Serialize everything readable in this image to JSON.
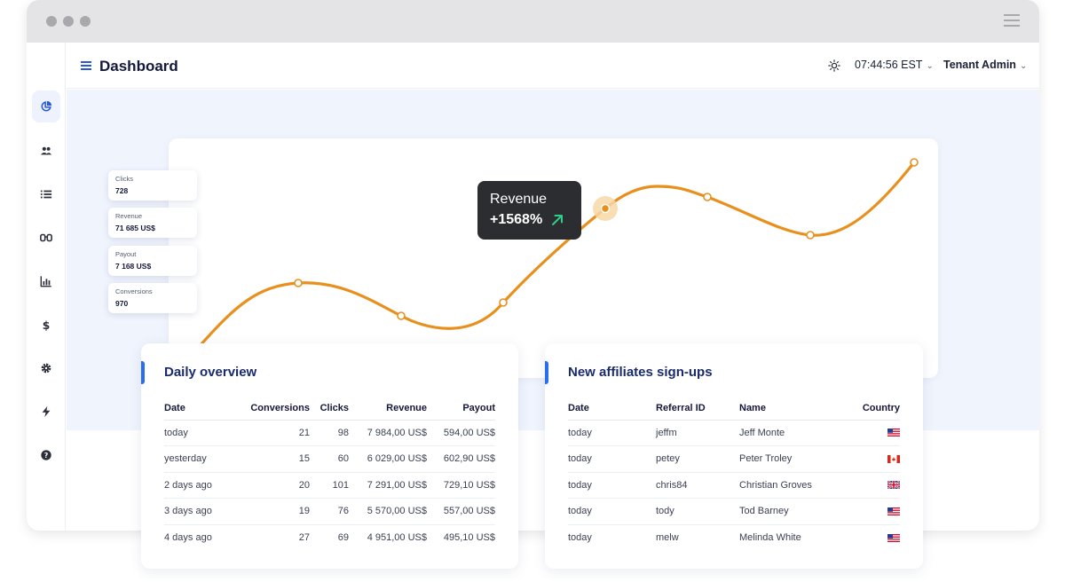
{
  "header": {
    "title": "Dashboard",
    "time": "07:44:56 EST",
    "user": "Tenant Admin"
  },
  "sidebar": {
    "items": [
      {
        "icon": "pie-chart-icon",
        "active": true
      },
      {
        "icon": "users-icon",
        "active": false
      },
      {
        "icon": "list-icon",
        "active": false
      },
      {
        "icon": "glasses-icon",
        "active": false
      },
      {
        "icon": "bar-chart-icon",
        "active": false
      },
      {
        "icon": "dollar-icon",
        "active": false
      },
      {
        "icon": "gear-icon",
        "active": false
      },
      {
        "icon": "bolt-icon",
        "active": false
      },
      {
        "icon": "help-icon",
        "active": false
      }
    ]
  },
  "stats": [
    {
      "label": "Clicks",
      "value": "728"
    },
    {
      "label": "Revenue",
      "value": "71 685 US$"
    },
    {
      "label": "Payout",
      "value": "7 168 US$"
    },
    {
      "label": "Conversions",
      "value": "970"
    }
  ],
  "tooltip": {
    "title": "Revenue",
    "value": "+1568%"
  },
  "daily": {
    "title": "Daily overview",
    "columns": [
      "Date",
      "Conversions",
      "Clicks",
      "Revenue",
      "Payout"
    ],
    "rows": [
      [
        "today",
        "21",
        "98",
        "7 984,00 US$",
        "594,00 US$"
      ],
      [
        "yesterday",
        "15",
        "60",
        "6 029,00 US$",
        "602,90 US$"
      ],
      [
        "2 days ago",
        "20",
        "101",
        "7 291,00 US$",
        "729,10 US$"
      ],
      [
        "3 days ago",
        "19",
        "76",
        "5 570,00 US$",
        "557,00 US$"
      ],
      [
        "4 days ago",
        "27",
        "69",
        "4 951,00 US$",
        "495,10 US$"
      ]
    ]
  },
  "affiliates": {
    "title": "New affiliates sign-ups",
    "columns": [
      "Date",
      "Referral ID",
      "Name",
      "Country"
    ],
    "rows": [
      {
        "date": "today",
        "ref": "jeffm",
        "name": "Jeff Monte",
        "flag": "us"
      },
      {
        "date": "today",
        "ref": "petey",
        "name": "Peter Troley",
        "flag": "ca"
      },
      {
        "date": "today",
        "ref": "chris84",
        "name": "Christian Groves",
        "flag": "gb"
      },
      {
        "date": "today",
        "ref": "tody",
        "name": "Tod Barney",
        "flag": "us"
      },
      {
        "date": "today",
        "ref": "melw",
        "name": "Melinda White",
        "flag": "us"
      }
    ]
  },
  "colors": {
    "accent": "#2a6ef0",
    "curve": "#e8901d",
    "title": "#1a2b6b"
  }
}
